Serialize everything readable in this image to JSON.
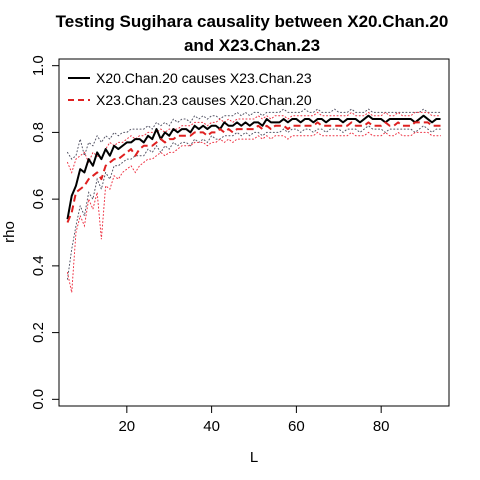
{
  "chart_data": {
    "type": "line",
    "title": "Testing Sugihara causality between  X20.Chan.20 and X23.Chan.23",
    "title_lines": [
      "Testing Sugihara causality between  X20.Chan.20",
      "and X23.Chan.23"
    ],
    "xlabel": "L",
    "ylabel": "rho",
    "xlim": [
      4,
      96
    ],
    "ylim": [
      -0.02,
      1.02
    ],
    "xticks": [
      20,
      40,
      60,
      80
    ],
    "yticks": [
      0.0,
      0.2,
      0.4,
      0.6,
      0.8,
      1.0
    ],
    "xtick_labels": [
      "20",
      "40",
      "60",
      "80"
    ],
    "ytick_labels": [
      "0.0",
      "0.2",
      "0.4",
      "0.6",
      "0.8",
      "1.0"
    ],
    "grid": false,
    "legend_position": "top-left",
    "x": [
      6,
      7,
      8,
      9,
      10,
      11,
      12,
      13,
      14,
      15,
      16,
      17,
      18,
      19,
      20,
      21,
      22,
      23,
      24,
      25,
      26,
      27,
      28,
      29,
      30,
      31,
      32,
      33,
      34,
      35,
      36,
      37,
      38,
      39,
      40,
      41,
      42,
      43,
      44,
      45,
      46,
      47,
      48,
      49,
      50,
      51,
      52,
      53,
      54,
      55,
      56,
      57,
      58,
      59,
      60,
      61,
      62,
      63,
      64,
      65,
      66,
      67,
      68,
      69,
      70,
      71,
      72,
      73,
      74,
      75,
      76,
      77,
      78,
      79,
      80,
      81,
      82,
      83,
      84,
      85,
      86,
      87,
      88,
      89,
      90,
      91,
      92,
      93,
      94
    ],
    "series": [
      {
        "name": "X20.Chan.20 causes X23.Chan.23",
        "color": "#000000",
        "dash": "solid",
        "values": [
          0.54,
          0.61,
          0.64,
          0.69,
          0.68,
          0.72,
          0.7,
          0.74,
          0.72,
          0.75,
          0.73,
          0.76,
          0.75,
          0.76,
          0.77,
          0.77,
          0.78,
          0.78,
          0.77,
          0.79,
          0.78,
          0.81,
          0.78,
          0.8,
          0.79,
          0.81,
          0.8,
          0.81,
          0.81,
          0.8,
          0.82,
          0.81,
          0.82,
          0.81,
          0.82,
          0.82,
          0.81,
          0.83,
          0.82,
          0.82,
          0.83,
          0.82,
          0.83,
          0.82,
          0.83,
          0.83,
          0.82,
          0.84,
          0.83,
          0.83,
          0.83,
          0.84,
          0.83,
          0.84,
          0.84,
          0.83,
          0.84,
          0.84,
          0.83,
          0.84,
          0.84,
          0.83,
          0.84,
          0.84,
          0.84,
          0.83,
          0.84,
          0.84,
          0.84,
          0.83,
          0.84,
          0.85,
          0.84,
          0.84,
          0.84,
          0.83,
          0.84,
          0.84,
          0.84,
          0.84,
          0.84,
          0.84,
          0.83,
          0.84,
          0.85,
          0.84,
          0.83,
          0.84,
          0.84
        ]
      },
      {
        "name": "X23.Chan.23 causes X20.Chan.20",
        "color": "#df2020",
        "dash": "dashed",
        "values": [
          0.53,
          0.56,
          0.62,
          0.63,
          0.64,
          0.66,
          0.67,
          0.68,
          0.66,
          0.7,
          0.71,
          0.72,
          0.72,
          0.73,
          0.74,
          0.75,
          0.73,
          0.75,
          0.76,
          0.76,
          0.76,
          0.77,
          0.78,
          0.77,
          0.78,
          0.78,
          0.79,
          0.79,
          0.79,
          0.79,
          0.8,
          0.8,
          0.8,
          0.79,
          0.8,
          0.8,
          0.81,
          0.8,
          0.81,
          0.8,
          0.81,
          0.81,
          0.81,
          0.81,
          0.81,
          0.82,
          0.81,
          0.82,
          0.81,
          0.82,
          0.82,
          0.82,
          0.81,
          0.82,
          0.82,
          0.82,
          0.82,
          0.82,
          0.82,
          0.83,
          0.82,
          0.82,
          0.82,
          0.82,
          0.82,
          0.82,
          0.82,
          0.83,
          0.82,
          0.82,
          0.82,
          0.83,
          0.82,
          0.82,
          0.82,
          0.83,
          0.82,
          0.82,
          0.83,
          0.82,
          0.82,
          0.82,
          0.83,
          0.83,
          0.83,
          0.83,
          0.82,
          0.82,
          0.82
        ]
      }
    ],
    "confidence_bands": [
      {
        "color": "#555566",
        "dash": "dotted",
        "upper": [
          0.74,
          0.72,
          0.73,
          0.78,
          0.73,
          0.77,
          0.76,
          0.79,
          0.77,
          0.79,
          0.78,
          0.8,
          0.79,
          0.8,
          0.8,
          0.81,
          0.81,
          0.81,
          0.81,
          0.82,
          0.81,
          0.83,
          0.82,
          0.83,
          0.82,
          0.84,
          0.83,
          0.84,
          0.84,
          0.83,
          0.85,
          0.84,
          0.85,
          0.84,
          0.85,
          0.85,
          0.84,
          0.85,
          0.85,
          0.85,
          0.86,
          0.85,
          0.86,
          0.85,
          0.86,
          0.86,
          0.85,
          0.86,
          0.86,
          0.86,
          0.86,
          0.87,
          0.86,
          0.86,
          0.86,
          0.86,
          0.87,
          0.86,
          0.86,
          0.87,
          0.86,
          0.86,
          0.86,
          0.87,
          0.86,
          0.86,
          0.86,
          0.87,
          0.86,
          0.86,
          0.86,
          0.87,
          0.86,
          0.86,
          0.86,
          0.86,
          0.86,
          0.86,
          0.86,
          0.86,
          0.86,
          0.86,
          0.86,
          0.86,
          0.87,
          0.86,
          0.86,
          0.86,
          0.86
        ],
        "lower": [
          0.36,
          0.45,
          0.52,
          0.58,
          0.55,
          0.62,
          0.6,
          0.66,
          0.63,
          0.68,
          0.66,
          0.7,
          0.7,
          0.71,
          0.72,
          0.72,
          0.73,
          0.73,
          0.73,
          0.75,
          0.74,
          0.76,
          0.74,
          0.76,
          0.75,
          0.77,
          0.76,
          0.77,
          0.77,
          0.76,
          0.78,
          0.77,
          0.78,
          0.77,
          0.79,
          0.78,
          0.78,
          0.79,
          0.79,
          0.79,
          0.8,
          0.79,
          0.8,
          0.79,
          0.8,
          0.8,
          0.79,
          0.8,
          0.8,
          0.8,
          0.8,
          0.81,
          0.8,
          0.81,
          0.81,
          0.8,
          0.81,
          0.81,
          0.8,
          0.81,
          0.81,
          0.8,
          0.81,
          0.81,
          0.81,
          0.8,
          0.81,
          0.81,
          0.81,
          0.8,
          0.81,
          0.82,
          0.81,
          0.81,
          0.81,
          0.8,
          0.81,
          0.81,
          0.81,
          0.81,
          0.81,
          0.81,
          0.8,
          0.81,
          0.82,
          0.81,
          0.8,
          0.81,
          0.81
        ]
      },
      {
        "color": "#ee3344",
        "dash": "dotted",
        "upper": [
          0.71,
          0.68,
          0.72,
          0.73,
          0.74,
          0.71,
          0.74,
          0.73,
          0.72,
          0.75,
          0.77,
          0.76,
          0.77,
          0.77,
          0.78,
          0.79,
          0.78,
          0.79,
          0.79,
          0.8,
          0.8,
          0.8,
          0.81,
          0.8,
          0.81,
          0.81,
          0.81,
          0.82,
          0.82,
          0.82,
          0.83,
          0.83,
          0.83,
          0.82,
          0.83,
          0.83,
          0.84,
          0.83,
          0.84,
          0.83,
          0.84,
          0.84,
          0.84,
          0.84,
          0.84,
          0.85,
          0.84,
          0.85,
          0.84,
          0.85,
          0.85,
          0.85,
          0.84,
          0.85,
          0.85,
          0.85,
          0.85,
          0.85,
          0.85,
          0.86,
          0.85,
          0.85,
          0.85,
          0.85,
          0.85,
          0.85,
          0.85,
          0.86,
          0.85,
          0.85,
          0.85,
          0.86,
          0.85,
          0.85,
          0.85,
          0.86,
          0.85,
          0.85,
          0.86,
          0.85,
          0.85,
          0.85,
          0.86,
          0.86,
          0.86,
          0.86,
          0.85,
          0.85,
          0.85
        ],
        "lower": [
          0.38,
          0.32,
          0.5,
          0.55,
          0.52,
          0.6,
          0.57,
          0.62,
          0.48,
          0.64,
          0.63,
          0.67,
          0.66,
          0.68,
          0.69,
          0.7,
          0.68,
          0.7,
          0.71,
          0.72,
          0.72,
          0.73,
          0.74,
          0.73,
          0.74,
          0.74,
          0.75,
          0.76,
          0.76,
          0.76,
          0.77,
          0.77,
          0.77,
          0.76,
          0.77,
          0.77,
          0.78,
          0.77,
          0.78,
          0.77,
          0.78,
          0.78,
          0.78,
          0.78,
          0.78,
          0.79,
          0.78,
          0.79,
          0.78,
          0.79,
          0.79,
          0.79,
          0.78,
          0.79,
          0.79,
          0.79,
          0.79,
          0.79,
          0.79,
          0.8,
          0.79,
          0.79,
          0.79,
          0.79,
          0.79,
          0.79,
          0.79,
          0.8,
          0.79,
          0.79,
          0.79,
          0.8,
          0.79,
          0.79,
          0.79,
          0.8,
          0.79,
          0.79,
          0.8,
          0.79,
          0.79,
          0.79,
          0.8,
          0.8,
          0.8,
          0.8,
          0.79,
          0.79,
          0.79
        ]
      }
    ]
  }
}
